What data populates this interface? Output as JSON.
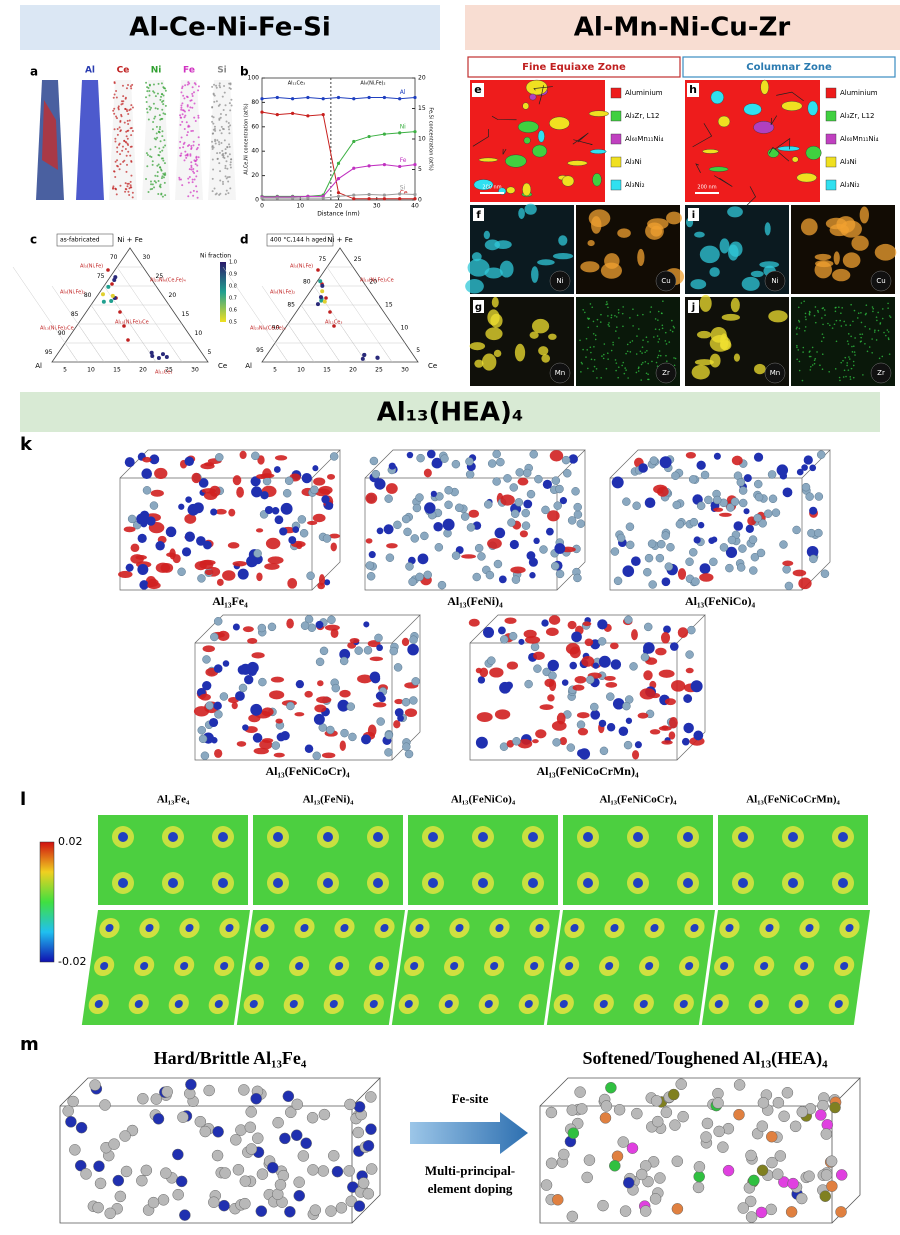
{
  "headers": {
    "left": "Al-Ce-Ni-Fe-Si",
    "right": "Al-Mn-Ni-Cu-Zr",
    "middle": "Al₁₃(HEA)₄"
  },
  "panel_a": {
    "label": "a",
    "elements": [
      "Al",
      "Ce",
      "Ni",
      "Fe",
      "Si"
    ]
  },
  "chart_data": {
    "type": "line",
    "label": "b",
    "xlabel": "Distance (nm)",
    "ylabel": "Al,Ce,Ni concentration (at%)",
    "y2label": "Fe,Si concentration (at%)",
    "annotations": [
      "Al₁₁Ce₃",
      "Al₉(Ni,Fe)₂"
    ],
    "x": [
      0,
      4,
      8,
      12,
      16,
      20,
      24,
      28,
      32,
      36,
      40
    ],
    "xlim": [
      0,
      40
    ],
    "xticks": [
      0,
      10,
      20,
      30,
      40
    ],
    "ylim": [
      0,
      100
    ],
    "yticks": [
      0,
      20,
      40,
      60,
      80,
      100
    ],
    "y2lim": [
      0,
      20
    ],
    "y2ticks": [
      0,
      5,
      10,
      15,
      20
    ],
    "series": [
      {
        "name": "Al",
        "color": "#1f3fbf",
        "values": [
          83,
          84,
          83,
          84,
          83,
          84,
          83,
          84,
          84,
          83,
          84
        ]
      },
      {
        "name": "Ce",
        "color": "#c8201e",
        "values": [
          72,
          70,
          71,
          69,
          70,
          6,
          1,
          1,
          1,
          1,
          1
        ]
      },
      {
        "name": "Ni",
        "color": "#3cb043",
        "values": [
          3,
          3,
          3,
          3,
          4,
          30,
          48,
          52,
          54,
          55,
          56
        ]
      },
      {
        "name": "Fe",
        "color": "#c030c0",
        "axis": "y2",
        "values": [
          0.5,
          0.5,
          0.5,
          0.6,
          0.6,
          3.5,
          5.2,
          5.6,
          5.8,
          5.5,
          5.8
        ]
      },
      {
        "name": "Si",
        "color": "#999999",
        "axis": "y2",
        "values": [
          0.3,
          0.3,
          0.3,
          0.3,
          0.3,
          0.6,
          0.8,
          0.9,
          0.8,
          1.0,
          0.9
        ]
      }
    ]
  },
  "panel_c": {
    "label": "c",
    "note": "as-fabricated",
    "apex": "Ni + Fe",
    "left_corner": "Al",
    "right_corner": "Ce",
    "colorbar_title": "Ni fraction",
    "colorbar_ticks": [
      "1.0",
      "0.9",
      "0.8",
      "0.7",
      "0.6",
      "0.5"
    ],
    "left_ticks": [
      70,
      75,
      80,
      85,
      90,
      95
    ],
    "right_ticks": [
      30,
      25,
      20,
      15,
      10,
      5
    ],
    "bottom_ticks": [
      5,
      10,
      15,
      20,
      25,
      30
    ],
    "phases": [
      "Al₃(Ni,Fe)",
      "Al₉(Ni,Fe)₂",
      "Al₁₃(Ni,Fe)₂Ce",
      "Al₂₃Ni₆(Ce,Fe)₄",
      "Al₁₀(Ni,Fe)₂Ce",
      "Al₁₁Ce₃"
    ]
  },
  "panel_d": {
    "label": "d",
    "note": "400 °C,144 h aged",
    "apex": "Ni + Fe",
    "left_corner": "Al",
    "right_corner": "Ce",
    "left_ticks": [
      75,
      80,
      85,
      90,
      95
    ],
    "right_ticks": [
      25,
      20,
      15,
      10,
      5
    ],
    "bottom_ticks": [
      5,
      10,
      15,
      20,
      25,
      30
    ],
    "phases": [
      "Al₃(Ni,Fe)",
      "Al₉(Ni,Fe)₂",
      "Al₂₃Ni₆(Ce,Fe)₄",
      "Al₁₀(Ni,Fe)₂Ce",
      "Al₁₁Ce₃"
    ]
  },
  "panel_eh": {
    "zones": [
      "Fine Equiaxe Zone",
      "Columnar Zone"
    ],
    "labels": [
      "e",
      "h"
    ],
    "legend": [
      "Aluminium",
      "Al₃Zr, L12",
      "Al₆₀Mn₁₁Ni₄",
      "Al₃Ni",
      "Al₃Ni₂"
    ],
    "scale": [
      "200 nm",
      "200 nm"
    ]
  },
  "panel_fgij": {
    "labels": [
      "f",
      "g",
      "i",
      "j"
    ],
    "elements": [
      "Ni",
      "Cu",
      "Mn",
      "Zr"
    ]
  },
  "panel_k": {
    "label": "k",
    "structures": [
      "Al₁₃Fe₄",
      "Al₁₃(FeNi)₄",
      "Al₁₃(FeNiCo)₄",
      "Al₁₃(FeNiCoCr)₄",
      "Al₁₃(FeNiCoCrMn)₄"
    ]
  },
  "panel_l": {
    "label": "l",
    "structures": [
      "Al₁₃Fe₄",
      "Al₁₃(FeNi)₄",
      "Al₁₃(FeNiCo)₄",
      "Al₁₃(FeNiCoCr)₄",
      "Al₁₃(FeNiCoCrMn)₄"
    ],
    "colorbar": [
      "0.02",
      "-0.02"
    ]
  },
  "panel_m": {
    "label": "m",
    "left_title": "Hard/Brittle Al₁₃Fe₄",
    "right_title": "Softened/Toughened Al₁₃(HEA)₄",
    "arrow_top": "Fe-site",
    "arrow_bottom": [
      "Multi-principal-",
      "element doping"
    ]
  }
}
